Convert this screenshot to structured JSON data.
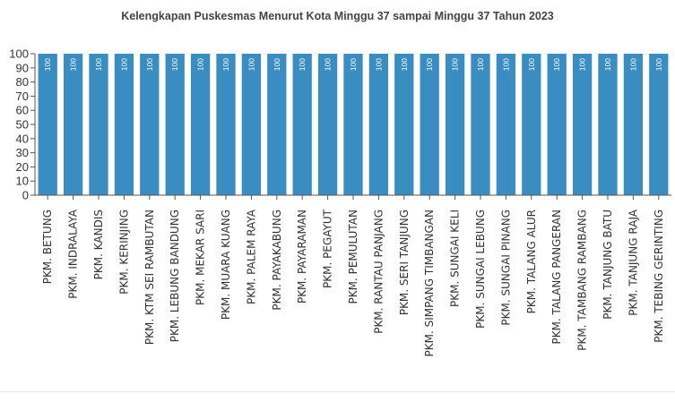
{
  "chart_data": {
    "type": "bar",
    "title": "Kelengkapan Puskesmas  Menurut Kota  Minggu 37 sampai Minggu 37 Tahun 2023",
    "xlabel": "",
    "ylabel": "",
    "ylim": [
      0,
      100
    ],
    "yticks": [
      0,
      10,
      20,
      30,
      40,
      50,
      60,
      70,
      80,
      90,
      100
    ],
    "grid": false,
    "legend": "none",
    "bar_color": "#3a8dc1",
    "categories": [
      "PKM. BETUNG",
      "PKM. INDRALAYA",
      "PKM. KANDIS",
      "PKM. KERINJING",
      "PKM. KTM SEI RAMBUTAN",
      "PKM. LEBUNG BANDUNG",
      "PKM. MEKAR SARI",
      "PKM. MUARA KUANG",
      "PKM. PALEM RAYA",
      "PKM. PAYAKABUNG",
      "PKM. PAYARAMAN",
      "PKM. PEGAYUT",
      "PKM. PEMULUTAN",
      "PKM. RANTAU PANJANG",
      "PKM. SERI TANJUNG",
      "PKM. SIMPANG TIMBANGAN",
      "PKM. SUNGAI KELI",
      "PKM. SUNGAI LEBUNG",
      "PKM. SUNGAI PINANG",
      "PKM. TALANG ALUR",
      "PKM. TALANG PANGERAN",
      "PKM. TAMBANG RAMBANG",
      "PKM. TANJUNG BATU",
      "PKM. TANJUNG RAJA",
      "PKM. TEBING GERINTING"
    ],
    "values": [
      100,
      100,
      100,
      100,
      100,
      100,
      100,
      100,
      100,
      100,
      100,
      100,
      100,
      100,
      100,
      100,
      100,
      100,
      100,
      100,
      100,
      100,
      100,
      100,
      100
    ],
    "data_labels": [
      "100",
      "100",
      "100",
      "100",
      "100",
      "100",
      "100",
      "100",
      "100",
      "100",
      "100",
      "100",
      "100",
      "100",
      "100",
      "100",
      "100",
      "100",
      "100",
      "100",
      "100",
      "100",
      "100",
      "100",
      "100"
    ]
  }
}
